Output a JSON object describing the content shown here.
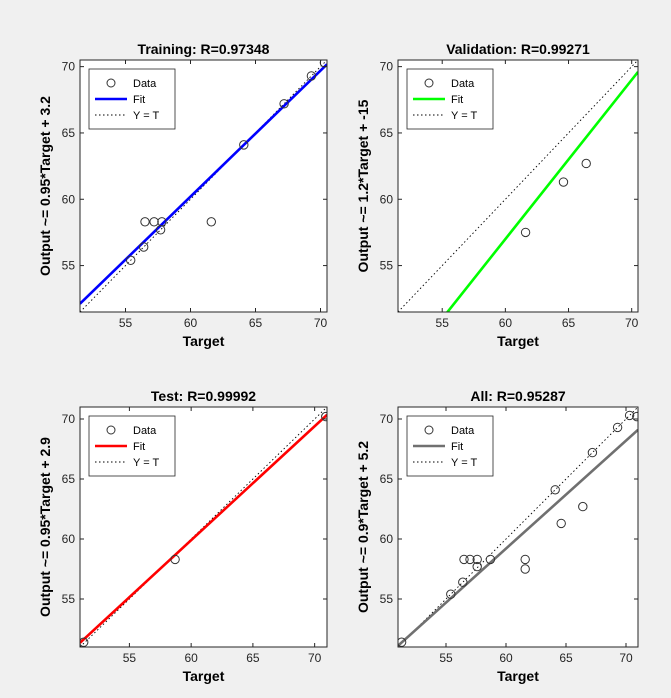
{
  "chart_data": [
    {
      "type": "scatter",
      "title": "Training: R=0.97348",
      "xlabel": "Target",
      "ylabel": "Output ~= 0.95*Target + 3.2",
      "xlim": [
        51.5,
        70.5
      ],
      "ylim": [
        51.5,
        70.5
      ],
      "xticks": [
        55,
        60,
        65,
        70
      ],
      "yticks": [
        55,
        60,
        65,
        70
      ],
      "grid": false,
      "legend_position": "top-left",
      "legend": [
        "Data",
        "Fit",
        "Y = T"
      ],
      "fit": {
        "slope": 0.95,
        "intercept": 3.2,
        "color": "#0000ff"
      },
      "data": {
        "x": [
          55.4,
          56.4,
          56.5,
          57.2,
          57.7,
          57.8,
          61.6,
          64.1,
          67.2,
          69.3,
          70.3
        ],
        "y": [
          55.4,
          56.4,
          58.3,
          58.3,
          57.7,
          58.3,
          58.3,
          64.1,
          67.2,
          69.3,
          70.3
        ]
      }
    },
    {
      "type": "scatter",
      "title": "Validation: R=0.99271",
      "xlabel": "Target",
      "ylabel": "Output ~= 1.2*Target + -15",
      "xlim": [
        51.5,
        70.5
      ],
      "ylim": [
        51.5,
        70.5
      ],
      "xticks": [
        55,
        60,
        65,
        70
      ],
      "yticks": [
        55,
        60,
        65,
        70
      ],
      "grid": false,
      "legend_position": "top-left",
      "legend": [
        "Data",
        "Fit",
        "Y = T"
      ],
      "fit": {
        "slope": 1.2,
        "intercept": -15,
        "color": "#00ff00"
      },
      "data": {
        "x": [
          61.6,
          64.6,
          66.4
        ],
        "y": [
          57.5,
          61.3,
          62.7
        ]
      }
    },
    {
      "type": "scatter",
      "title": "Test: R=0.99992",
      "xlabel": "Target",
      "ylabel": "Output ~= 0.95*Target + 2.9",
      "xlim": [
        51,
        71
      ],
      "ylim": [
        51,
        71
      ],
      "xticks": [
        55,
        60,
        65,
        70
      ],
      "yticks": [
        55,
        60,
        65,
        70
      ],
      "grid": false,
      "legend_position": "top-left",
      "legend": [
        "Data",
        "Fit",
        "Y = T"
      ],
      "fit": {
        "slope": 0.95,
        "intercept": 2.9,
        "color": "#ff0000"
      },
      "data": {
        "x": [
          51.3,
          58.7,
          70.9
        ],
        "y": [
          51.4,
          58.3,
          70.2
        ]
      }
    },
    {
      "type": "scatter",
      "title": "All: R=0.95287",
      "xlabel": "Target",
      "ylabel": "Output ~= 0.9*Target + 5.2",
      "xlim": [
        51,
        71
      ],
      "ylim": [
        51,
        71
      ],
      "xticks": [
        55,
        60,
        65,
        70
      ],
      "yticks": [
        55,
        60,
        65,
        70
      ],
      "grid": false,
      "legend_position": "top-left",
      "legend": [
        "Data",
        "Fit",
        "Y = T"
      ],
      "fit": {
        "slope": 0.9,
        "intercept": 5.2,
        "color": "#707070"
      },
      "data": {
        "x": [
          51.3,
          55.4,
          56.4,
          56.5,
          57.0,
          57.6,
          57.6,
          58.7,
          61.6,
          61.6,
          64.1,
          64.6,
          66.4,
          67.2,
          69.3,
          70.3,
          70.9
        ],
        "y": [
          51.4,
          55.4,
          56.4,
          58.3,
          58.3,
          57.7,
          58.3,
          58.3,
          58.3,
          57.5,
          64.1,
          61.3,
          62.7,
          67.2,
          69.3,
          70.3,
          70.2
        ]
      }
    }
  ]
}
